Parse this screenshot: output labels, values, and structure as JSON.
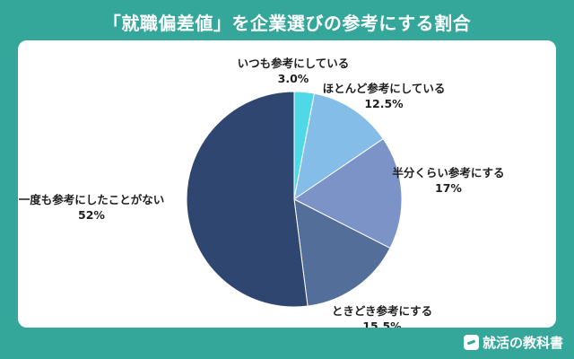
{
  "page": {
    "title": "「就職偏差値」を企業選びの参考にする割合",
    "brand": "就活の教科書",
    "brand_icon": "textbook-logo-icon"
  },
  "chart_data": {
    "type": "pie",
    "title": "「就職偏差値」を企業選びの参考にする割合",
    "start": "12 o'clock, clockwise",
    "slices": [
      {
        "label": "いつも参考にしている",
        "value": 3.0,
        "value_label": "3.0%",
        "color": "#4fd8e6"
      },
      {
        "label": "ほとんど参考にしている",
        "value": 12.5,
        "value_label": "12.5%",
        "color": "#84bde8"
      },
      {
        "label": "半分くらい参考にする",
        "value": 17,
        "value_label": "17%",
        "color": "#7b93c7"
      },
      {
        "label": "ときどき参考にする",
        "value": 15.5,
        "value_label": "15.5%",
        "color": "#526e99"
      },
      {
        "label": "一度も参考にしたことがない",
        "value": 52,
        "value_label": "52%",
        "color": "#2f4770"
      }
    ]
  }
}
